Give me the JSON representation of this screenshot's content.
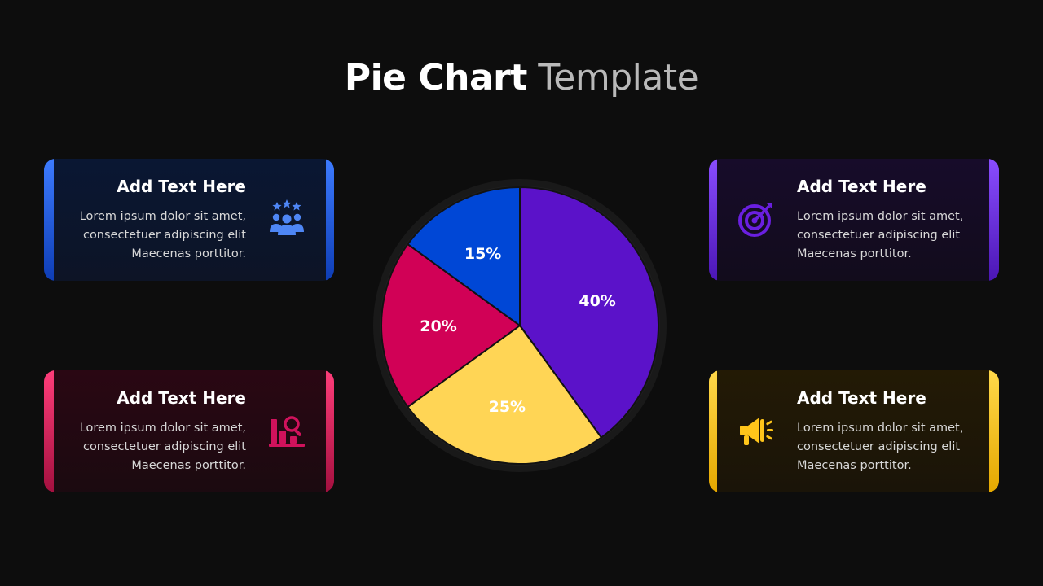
{
  "title": {
    "bold": "Pie Chart",
    "light": "Template"
  },
  "cards": {
    "blue": {
      "heading": "Add Text Here",
      "line1": "Lorem ipsum dolor sit amet,",
      "line2": "consectetuer adipiscing elit",
      "line3": "Maecenas porttitor.",
      "icon": "team-stars-icon",
      "color": "#3d7bff"
    },
    "pink": {
      "heading": "Add Text Here",
      "line1": "Lorem ipsum dolor sit amet,",
      "line2": "consectetuer adipiscing elit",
      "line3": "Maecenas porttitor.",
      "icon": "chart-search-icon",
      "color": "#ff3d7a"
    },
    "purple": {
      "heading": "Add Text Here",
      "line1": "Lorem ipsum dolor sit amet,",
      "line2": "consectetuer adipiscing elit",
      "line3": "Maecenas porttitor.",
      "icon": "target-icon",
      "color": "#7a2cf0"
    },
    "yellow": {
      "heading": "Add Text Here",
      "line1": "Lorem ipsum dolor sit amet,",
      "line2": "consectetuer adipiscing elit",
      "line3": "Maecenas porttitor.",
      "icon": "megaphone-icon",
      "color": "#ffc51a"
    }
  },
  "chart_data": {
    "type": "pie",
    "slices": [
      {
        "label": "40%",
        "value": 40,
        "color": "#5b12c9"
      },
      {
        "label": "25%",
        "value": 25,
        "color": "#ffd555"
      },
      {
        "label": "20%",
        "value": 20,
        "color": "#d10156"
      },
      {
        "label": "15%",
        "value": 15,
        "color": "#0047d6"
      }
    ],
    "start": "12 o'clock",
    "direction": "clockwise",
    "title": "",
    "legend": "none"
  }
}
